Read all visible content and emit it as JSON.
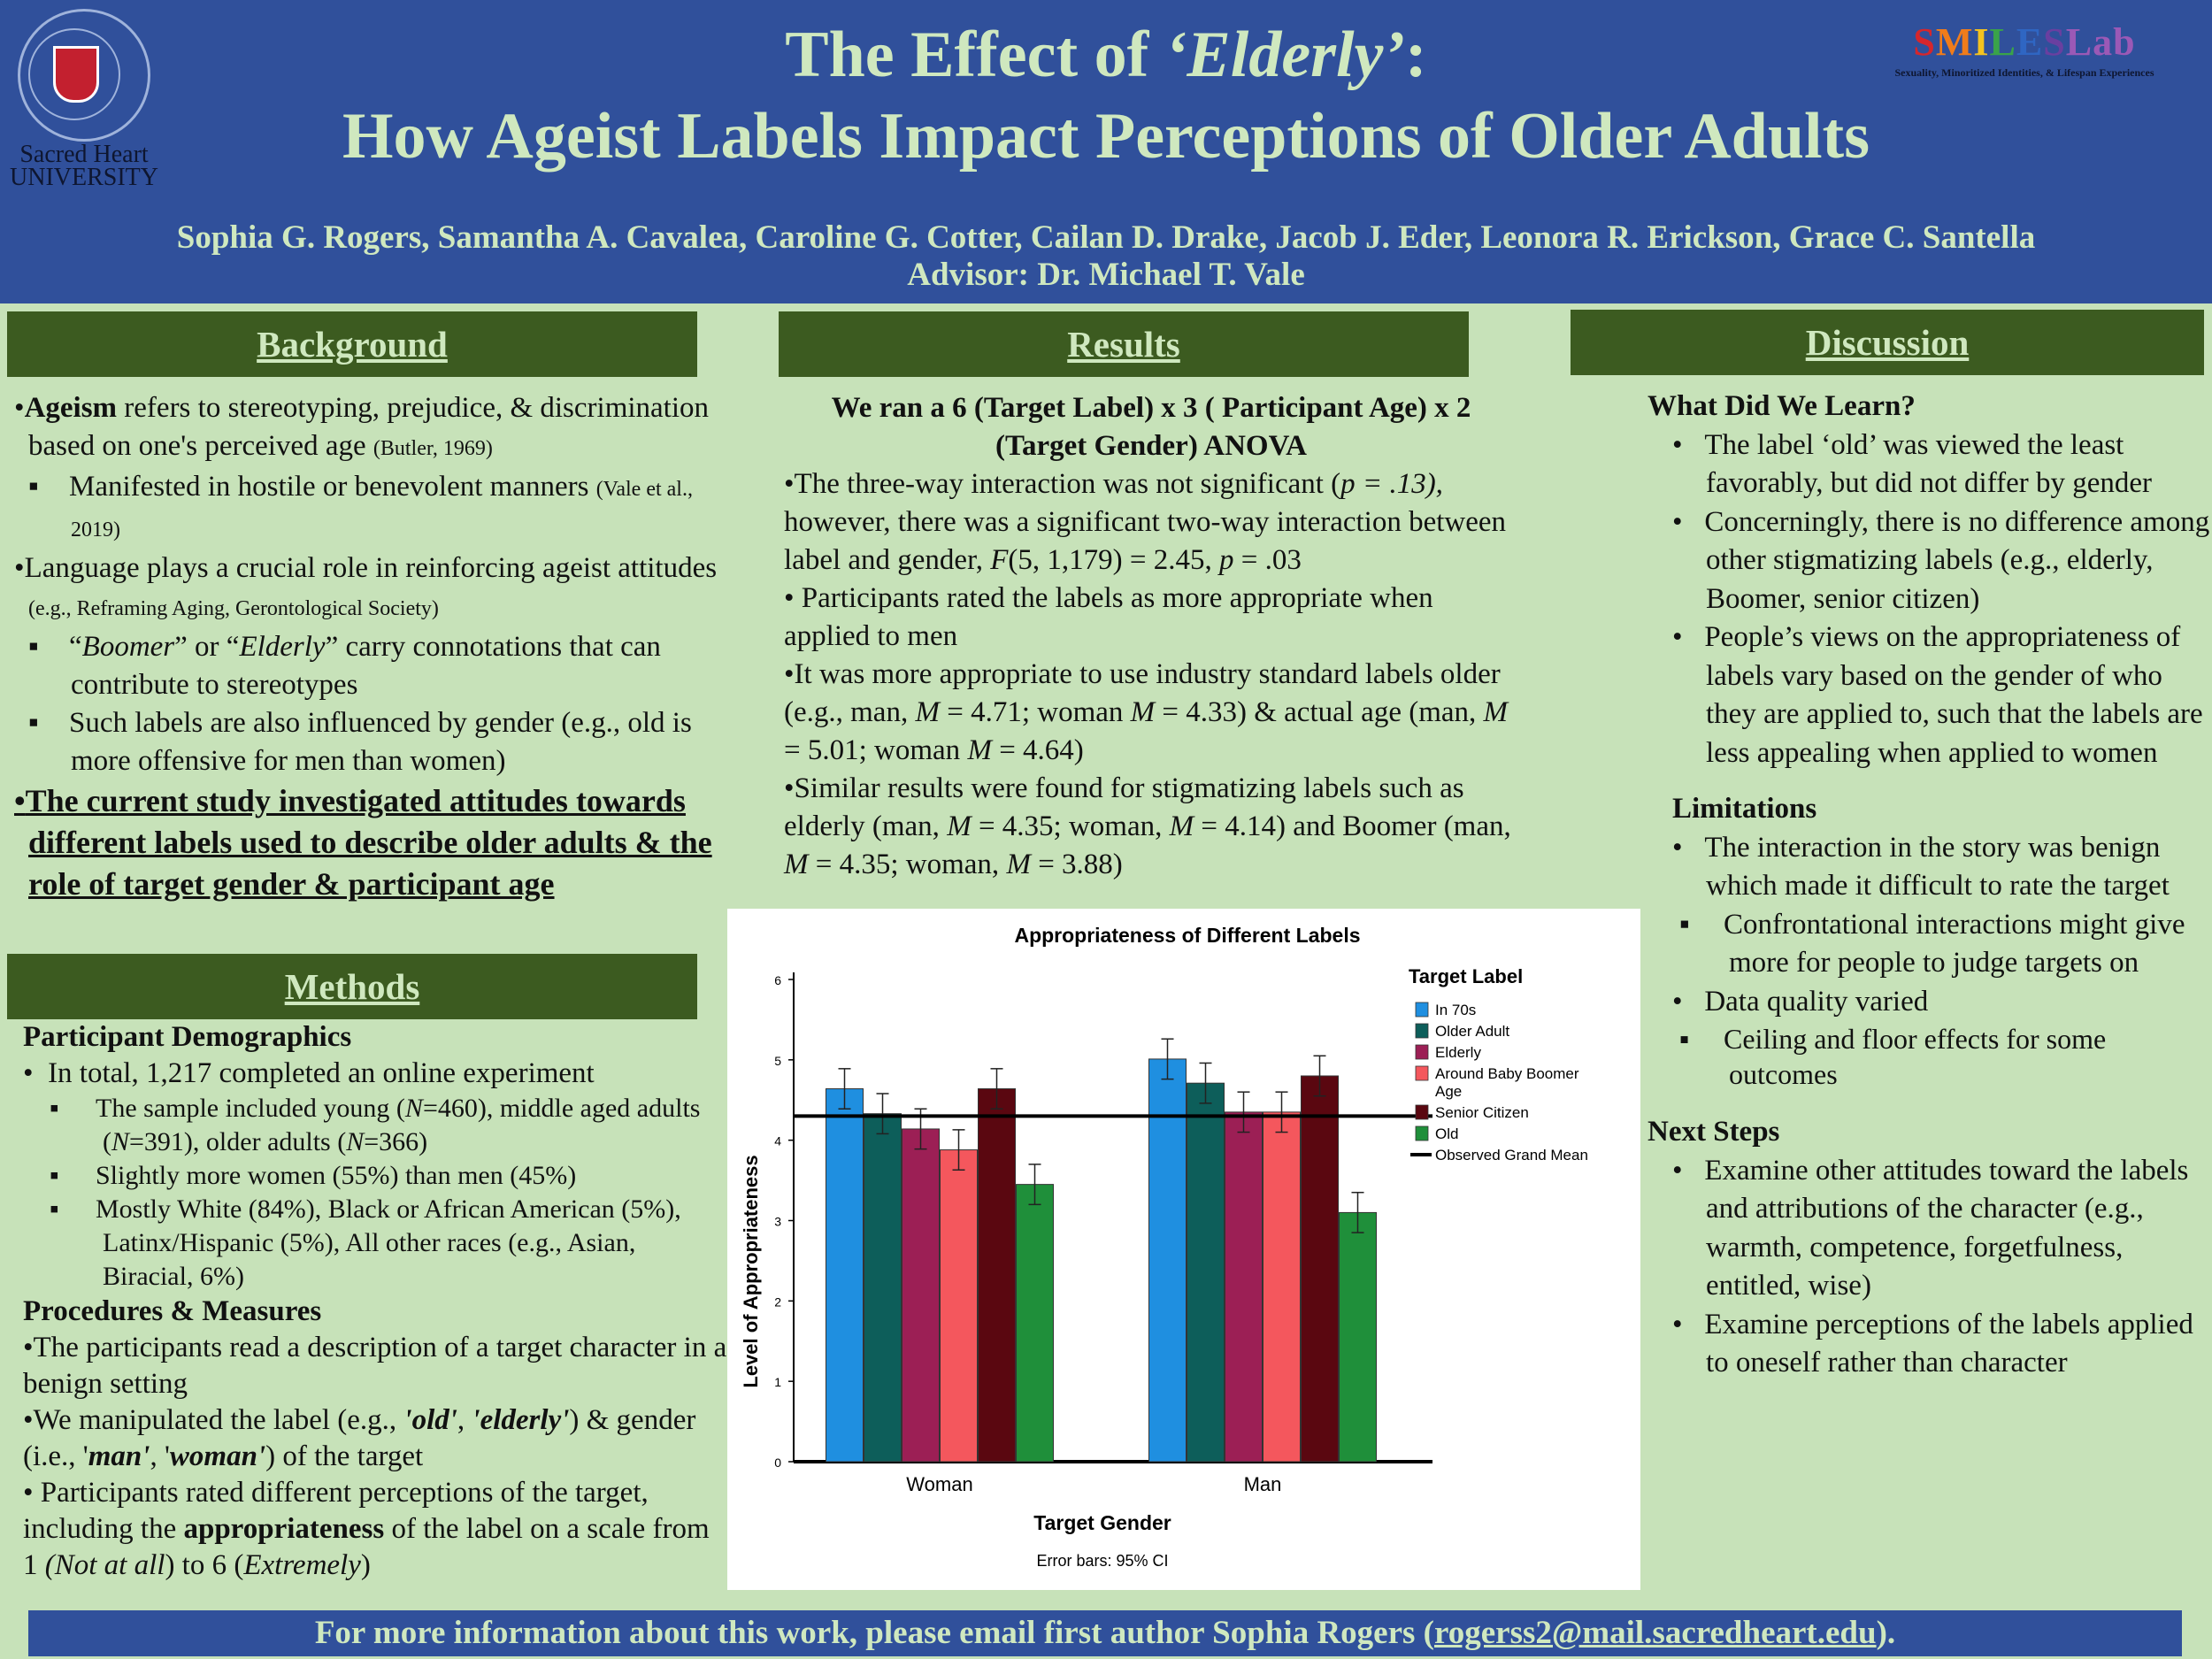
{
  "header": {
    "title_prefix": "The Effect of ",
    "title_quoted": "‘Elderly’",
    "title_suffix": ":",
    "title_line2": "How Ageist Labels Impact Perceptions of Older Adults",
    "authors": "Sophia G. Rogers, Samantha A. Cavalea, Caroline G. Cotter, Cailan D. Drake, Jacob J. Eder, Leonora R. Erickson, Grace C. Santella",
    "advisor": "Advisor:  Dr. Michael T. Vale",
    "university_line1": "Sacred Heart",
    "university_line2": "UNIVERSITY",
    "lab_letters": [
      "S",
      "M",
      "I",
      "L",
      "E",
      "S",
      "Lab"
    ],
    "lab_colors": [
      "#d6262c",
      "#f07c1b",
      "#f4c21f",
      "#3aa34a",
      "#2f66c3",
      "#6a3fa0",
      "#9b59b6"
    ],
    "lab_subtitle": "Sexuality, Minoritized Identities, & Lifespan Experiences"
  },
  "background": {
    "heading": "Background",
    "b1_bold": "Ageism",
    "b1_text": " refers to stereotyping, prejudice, & discrimination based on one's perceived age ",
    "b1_cite": "(Butler, 1969)",
    "b1a_text": "Manifested in hostile or benevolent manners ",
    "b1a_cite": "(Vale et al., 2019)",
    "b2_text": "Language plays a crucial role in reinforcing ageist attitudes ",
    "b2_cite": "(e.g., Reframing Aging, Gerontological Society)",
    "b2a_pre": "“",
    "b2a_boomer": "Boomer",
    "b2a_mid": "” or “",
    "b2a_elderly": "Elderly",
    "b2a_post": "” carry connotations that can contribute to stereotypes",
    "b2b_text": "Such labels are also influenced by gender (e.g., old is more offensive for men than women)",
    "b3_text": "The current study investigated attitudes towards different labels used to describe older adults & the role of target gender & participant age"
  },
  "methods": {
    "heading": "Methods",
    "demo_head": "Participant Demographics",
    "m1": "In total, 1,217 completed an online experiment",
    "m1a_pre": "The sample included young (",
    "m1a_n": "N",
    "m1a_v1": "=460), middle aged adults (",
    "m1a_v2": "=391), older adults (",
    "m1a_v3": "=366)",
    "m1b": "Slightly more women (55%) than men (45%)",
    "m1c": "Mostly White (84%), Black or African American (5%), Latinx/Hispanic (5%), All other races (e.g., Asian, Biracial, 6%)",
    "proc_head": "Procedures & Measures",
    "p1": "•The participants read a description of a target character in a benign setting",
    "p2_pre": "•We manipulated the label (e.g., ",
    "p2_old": "'old'",
    "p2_comma": ", ",
    "p2_elderly": "'elderly'",
    "p2_mid": ") & gender (i.e., '",
    "p2_man": "man'",
    "p2_comma2": ", '",
    "p2_woman": "woman'",
    "p2_post": ") of the target",
    "p3_pre": "• Participants rated different perceptions of the target, including the ",
    "p3_bold": "appropriateness",
    "p3_mid": " of the label on a scale from 1 ",
    "p3_notatall": "(Not at all",
    "p3_mid2": ") to 6 (",
    "p3_extremely": "Extremely",
    "p3_post": ")"
  },
  "results": {
    "heading": "Results",
    "design": "We ran a 6 (Target Label) x 3 ( Participant Age) x 2 (Target Gender) ANOVA",
    "r1_pre": "•The three-way interaction was not significant (",
    "r1_p": "p = .13),",
    "r1_mid": " however, there was a significant two-way interaction between label and gender, ",
    "r1_f": "F",
    "r1_post": "(5, 1,179) = 2.45,  ",
    "r1_p2": "p",
    "r1_end": " = .03",
    "r2": "• Participants rated the labels as more appropriate when applied to men",
    "r3_a": "•It was more appropriate to use industry standard labels older (e.g., man, ",
    "r3_b": " = 4.71; woman ",
    "r3_c": " = 4.33) & actual age (man, ",
    "r3_d": " = 5.01; woman ",
    "r3_e": " = 4.64)",
    "r4_a": "•Similar results were found for stigmatizing labels such as elderly (man, ",
    "r4_b": " = 4.35; woman, ",
    "r4_c": " = 4.14) and Boomer (man, ",
    "r4_d": " = 4.35; woman, ",
    "r4_e": " = 3.88)",
    "m": "M"
  },
  "chart_data": {
    "type": "bar",
    "title": "Appropriateness of Different Labels",
    "xlabel": "Target Gender",
    "ylabel": "Level of Appropriateness",
    "categories": [
      "Woman",
      "Man"
    ],
    "ylim": [
      0,
      6
    ],
    "yticks": [
      "0",
      "1",
      "2",
      "3",
      "4",
      "5",
      "6"
    ],
    "legend_title": "Target Label",
    "series": [
      {
        "name": "In 70s",
        "values": [
          4.64,
          5.01
        ],
        "ci": [
          0.25,
          0.25
        ],
        "color": "#1f8fe0"
      },
      {
        "name": "Older Adult",
        "values": [
          4.33,
          4.71
        ],
        "ci": [
          0.25,
          0.25
        ],
        "color": "#0d5e5a"
      },
      {
        "name": "Elderly",
        "values": [
          4.14,
          4.35
        ],
        "ci": [
          0.25,
          0.25
        ],
        "color": "#9c1f55"
      },
      {
        "name": "Around Baby Boomer Age",
        "values": [
          3.88,
          4.35
        ],
        "ci": [
          0.25,
          0.25
        ],
        "color": "#f4575d"
      },
      {
        "name": "Senior Citizen",
        "values": [
          4.64,
          4.8
        ],
        "ci": [
          0.25,
          0.25
        ],
        "color": "#5a0710"
      },
      {
        "name": "Old",
        "values": [
          3.45,
          3.1
        ],
        "ci": [
          0.25,
          0.25
        ],
        "color": "#1f8f3a"
      }
    ],
    "grand_mean": 4.3,
    "grand_mean_label": "Observed Grand Mean",
    "footnote": "Error bars: 95% CI"
  },
  "discussion": {
    "heading": "Discussion",
    "learn_head": "What Did We Learn?",
    "d1": "The label ‘old’ was viewed the least favorably, but did not differ by gender",
    "d2": "Concerningly, there is no difference among other stigmatizing labels (e.g., elderly, Boomer, senior citizen)",
    "d3": "People’s views on the appropriateness of labels vary based on the gender of who they are applied to, such that the labels are less appealing when applied to women",
    "lim_head": "Limitations",
    "l1": "The interaction in the story was benign which made it difficult to rate the target",
    "l1a": "Confrontational interactions might give more for people to judge targets on",
    "l2": "Data quality varied",
    "l2a": "Ceiling and floor effects for some outcomes",
    "next_head": "Next Steps",
    "n1": "Examine other attitudes toward the labels and attributions of the character (e.g., warmth, competence, forgetfulness, entitled, wise)",
    "n2": "Examine perceptions of the labels applied to oneself  rather than character"
  },
  "footer": {
    "text": "For more information about this work, please email first author Sophia Rogers (",
    "email": "rogerss2@mail.sacredheart.edu",
    "end": ")."
  }
}
